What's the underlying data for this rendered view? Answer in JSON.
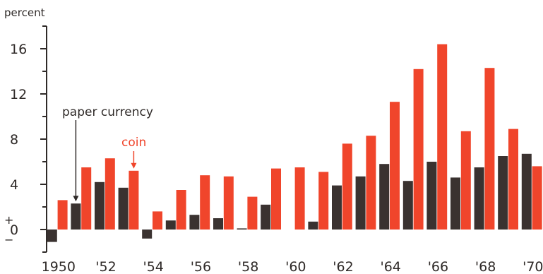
{
  "chart_data": {
    "type": "bar",
    "ylabel": "percent",
    "ylim": [
      -2,
      18
    ],
    "yticks": [
      {
        "value": 16,
        "label": "16"
      },
      {
        "value": 12,
        "label": "12"
      },
      {
        "value": 8,
        "label": "8"
      },
      {
        "value": 4,
        "label": "4"
      },
      {
        "value": 0,
        "label": "0"
      }
    ],
    "zero_signs": {
      "plus": "+",
      "minus": "−"
    },
    "categories": [
      "1950",
      "1951",
      "1952",
      "1953",
      "1954",
      "1955",
      "1956",
      "1957",
      "1958",
      "1959",
      "1960",
      "1961",
      "1962",
      "1963",
      "1964",
      "1965",
      "1966",
      "1967",
      "1968",
      "1969",
      "1970"
    ],
    "xtick_labels": [
      {
        "index": 0,
        "label": "1950"
      },
      {
        "index": 2,
        "label": "'52"
      },
      {
        "index": 4,
        "label": "'54"
      },
      {
        "index": 6,
        "label": "'56"
      },
      {
        "index": 8,
        "label": "'58"
      },
      {
        "index": 10,
        "label": "'60"
      },
      {
        "index": 12,
        "label": "'62"
      },
      {
        "index": 14,
        "label": "'64"
      },
      {
        "index": 16,
        "label": "'66"
      },
      {
        "index": 18,
        "label": "'68"
      },
      {
        "index": 20,
        "label": "'70"
      }
    ],
    "series": [
      {
        "values": [
          -1.1,
          2.3,
          4.2,
          3.7,
          -0.8,
          0.8,
          1.3,
          1.0,
          0.1,
          2.2,
          0.0,
          0.7,
          3.9,
          4.7,
          5.8,
          4.3,
          6.0,
          4.6,
          5.5,
          6.5,
          6.7
        ],
        "color": "#3a3230"
      },
      {
        "values": [
          2.6,
          5.5,
          6.3,
          5.2,
          1.6,
          3.5,
          4.8,
          4.7,
          2.9,
          5.4,
          5.5,
          5.1,
          7.6,
          8.3,
          11.3,
          14.2,
          16.4,
          8.7,
          14.3,
          8.9,
          5.6
        ],
        "color": "#f0452b"
      }
    ],
    "annotations": [
      {
        "text": "paper currency",
        "points_to": {
          "series": 0,
          "index": 1
        }
      },
      {
        "text": "coin",
        "points_to": {
          "series": 1,
          "index": 3
        }
      }
    ],
    "grid": false,
    "legend": "none"
  }
}
